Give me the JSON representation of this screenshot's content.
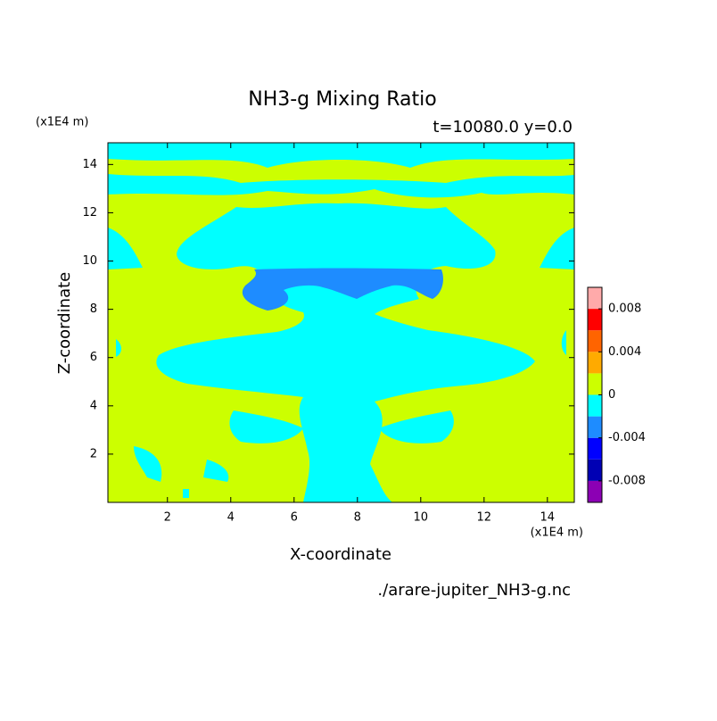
{
  "chart_data": {
    "type": "contour",
    "title": "NH3-g Mixing Ratio",
    "subtitle": "t=10080.0 y=0.0",
    "x_label": "X-coordinate",
    "y_label": "Z-coordinate",
    "x_unit": "(x1E4 m)",
    "y_unit": "(x1E4 m)",
    "source": "./arare-jupiter_NH3-g.nc",
    "xlim": [
      0.12,
      14.85
    ],
    "ylim": [
      0,
      14.9
    ],
    "xticks": [
      2,
      4,
      6,
      8,
      10,
      12,
      14
    ],
    "yticks": [
      2,
      4,
      6,
      8,
      10,
      12,
      14
    ],
    "colorbar": {
      "levels": [
        -0.01,
        -0.008,
        -0.006,
        -0.004,
        -0.002,
        0,
        0.002,
        0.004,
        0.006,
        0.008,
        0.01
      ],
      "colors": [
        "#8c00b4",
        "#0000b4",
        "#0000ff",
        "#1e8cff",
        "#00ffff",
        "#ccff00",
        "#ffaa00",
        "#ff6400",
        "#ff0000",
        "#ffaaaa"
      ],
      "ticks": [
        -0.008,
        -0.004,
        0,
        0.004,
        0.008
      ]
    }
  }
}
